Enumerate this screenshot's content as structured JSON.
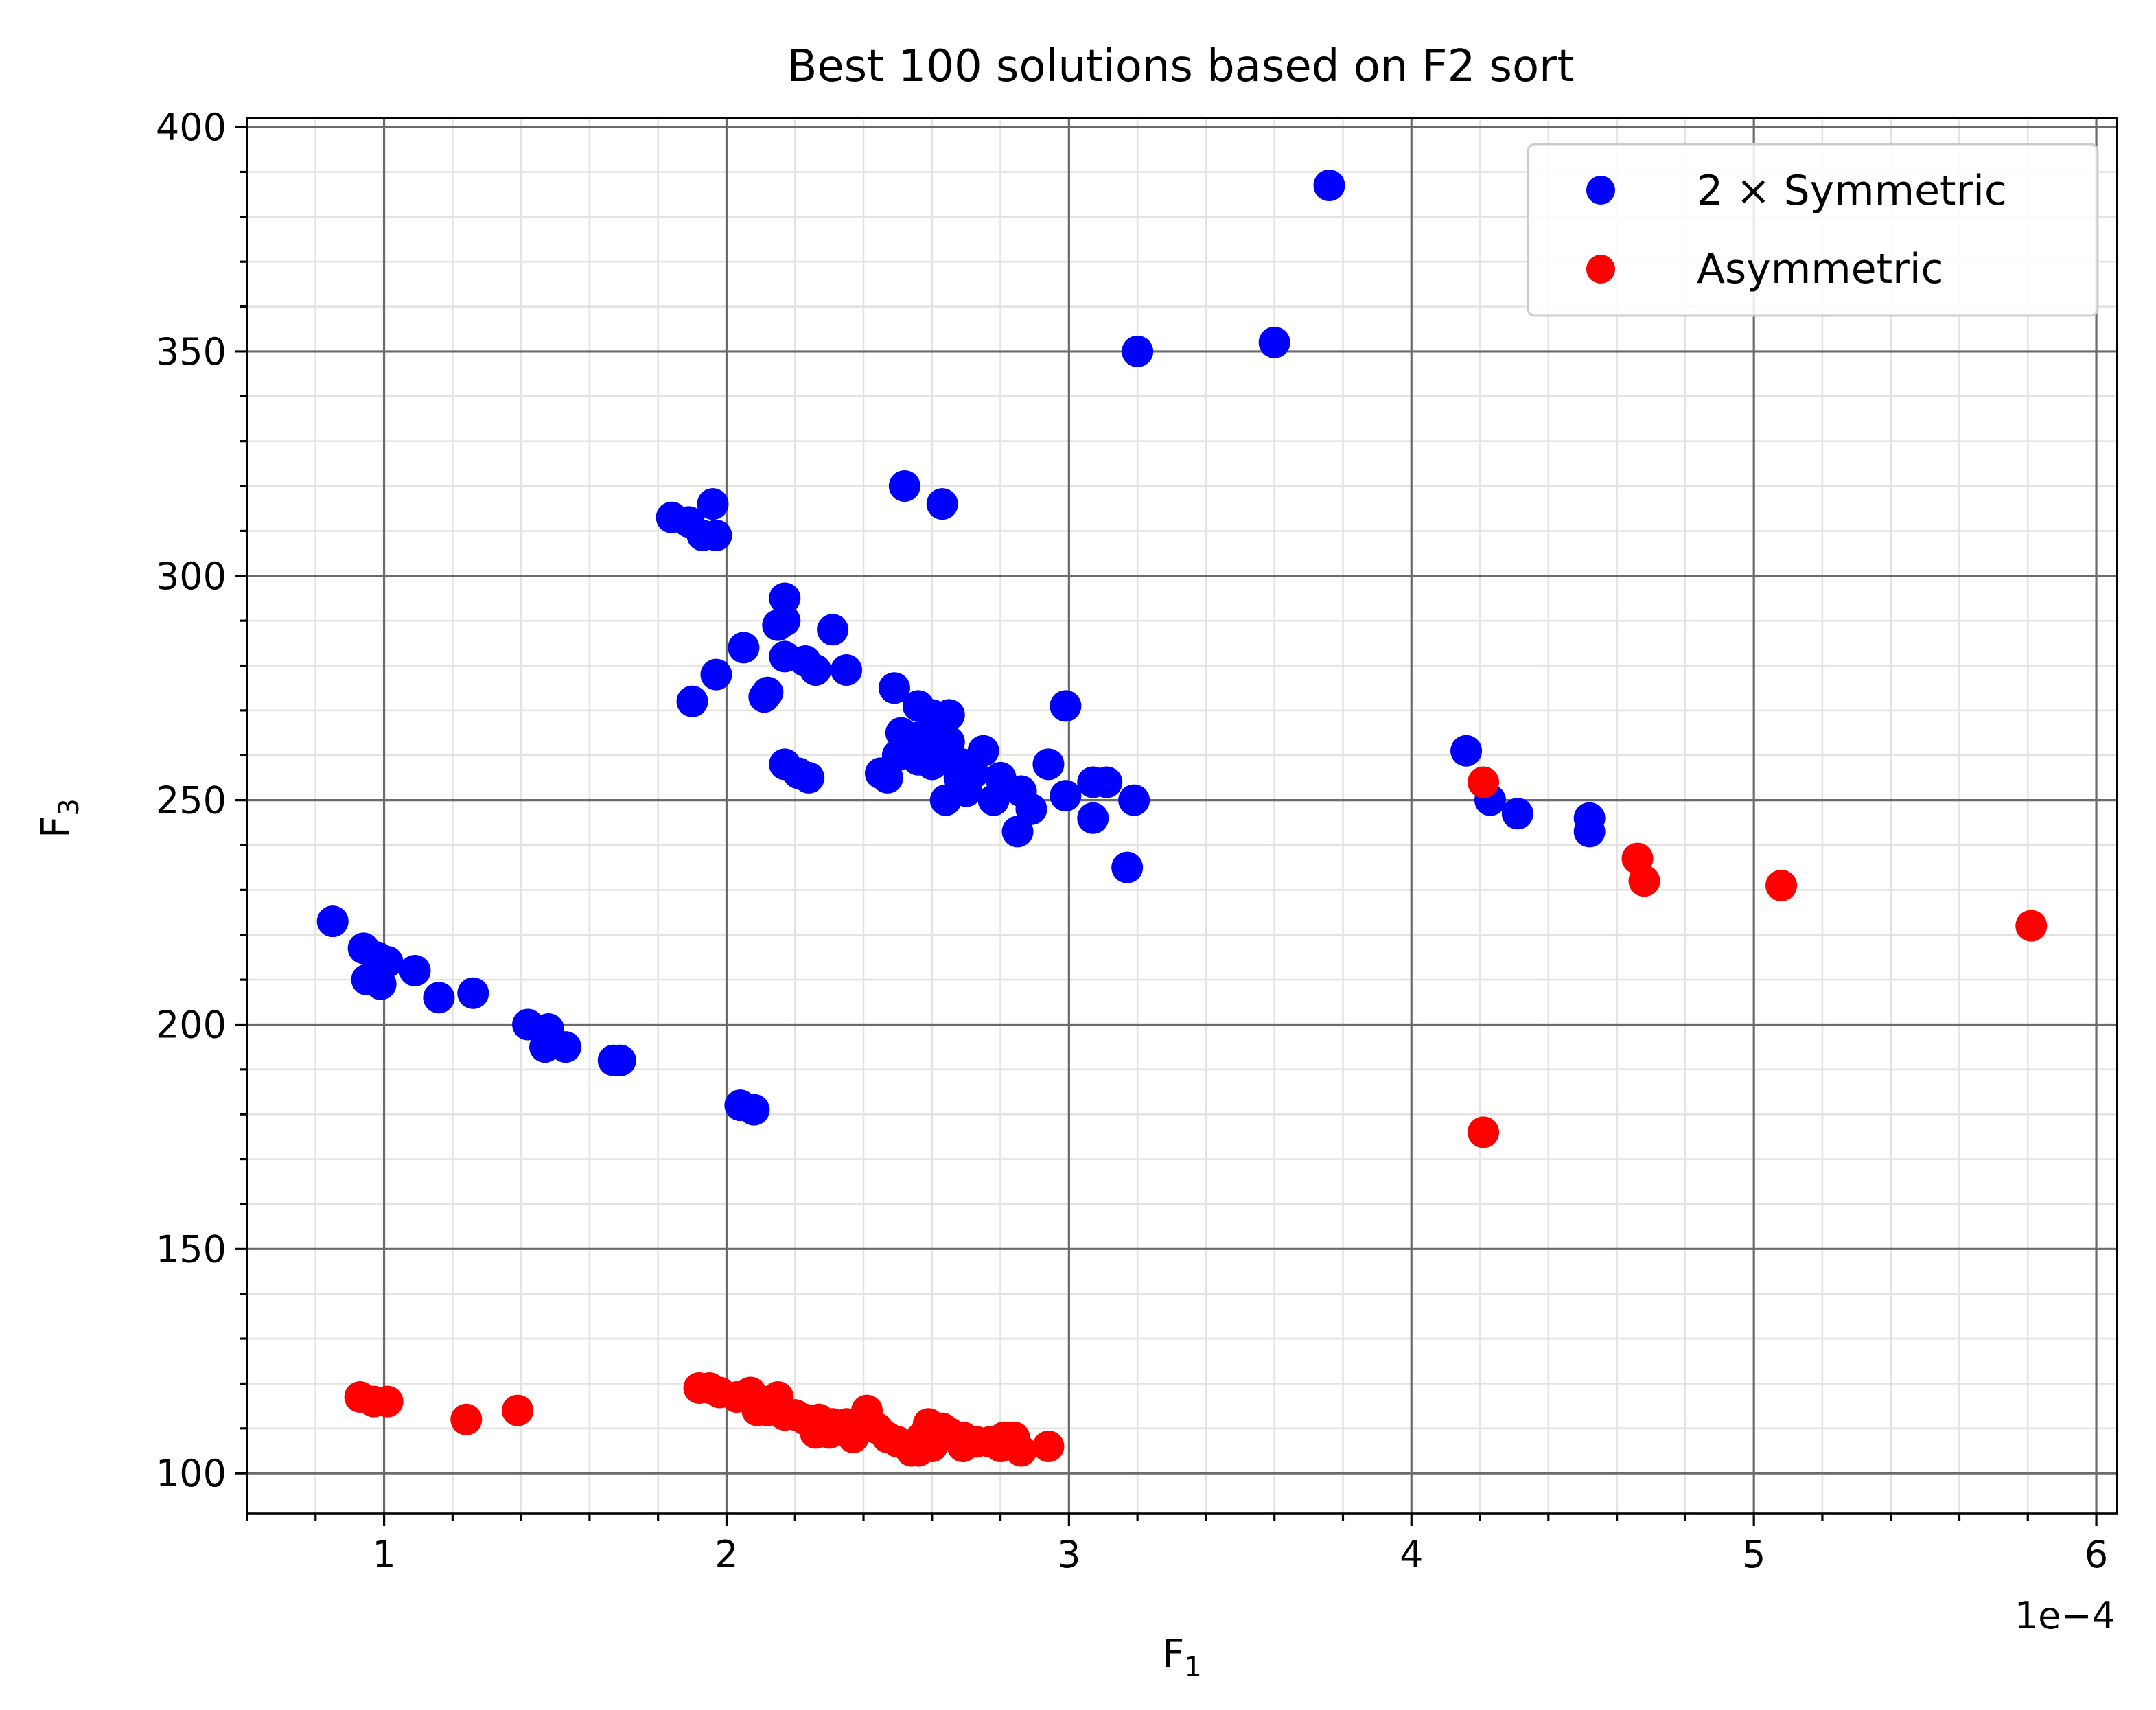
{
  "chart_data": {
    "type": "scatter",
    "title": "Best 100 solutions based on F2 sort",
    "xlabel": "F",
    "xlabel_sub": "1",
    "ylabel": "F",
    "ylabel_sub": "3",
    "x_offset_text": "1e−4",
    "xlim": [
      0.6,
      6.06
    ],
    "ylim": [
      91,
      402
    ],
    "x_ticks": [
      1,
      2,
      3,
      4,
      5,
      6
    ],
    "x_tick_labels": [
      "1",
      "2",
      "3",
      "4",
      "5",
      "6"
    ],
    "y_ticks": [
      100,
      150,
      200,
      250,
      300,
      350,
      400
    ],
    "y_tick_labels": [
      "100",
      "150",
      "200",
      "250",
      "300",
      "350",
      "400"
    ],
    "grid": true,
    "legend_position": "top-right",
    "series": [
      {
        "name": "2 × Symmetric",
        "color": "#0000ff",
        "points": [
          [
            0.85,
            223
          ],
          [
            0.94,
            217
          ],
          [
            0.98,
            215
          ],
          [
            1.01,
            214
          ],
          [
            0.95,
            210
          ],
          [
            0.99,
            209
          ],
          [
            1.09,
            212
          ],
          [
            1.16,
            206
          ],
          [
            1.26,
            207
          ],
          [
            1.42,
            200
          ],
          [
            1.48,
            199
          ],
          [
            1.47,
            195
          ],
          [
            1.53,
            195
          ],
          [
            1.67,
            192
          ],
          [
            1.69,
            192
          ],
          [
            2.04,
            182
          ],
          [
            2.08,
            181
          ],
          [
            1.84,
            313
          ],
          [
            1.89,
            312
          ],
          [
            1.96,
            316
          ],
          [
            1.93,
            309
          ],
          [
            1.97,
            309
          ],
          [
            2.52,
            320
          ],
          [
            2.63,
            316
          ],
          [
            2.17,
            295
          ],
          [
            2.17,
            290
          ],
          [
            2.15,
            289
          ],
          [
            2.31,
            288
          ],
          [
            2.05,
            284
          ],
          [
            2.17,
            282
          ],
          [
            2.23,
            281
          ],
          [
            2.26,
            279
          ],
          [
            2.35,
            279
          ],
          [
            1.97,
            278
          ],
          [
            2.12,
            274
          ],
          [
            2.11,
            273
          ],
          [
            1.9,
            272
          ],
          [
            2.49,
            275
          ],
          [
            2.56,
            271
          ],
          [
            2.99,
            271
          ],
          [
            2.6,
            269
          ],
          [
            2.65,
            269
          ],
          [
            2.51,
            265
          ],
          [
            2.56,
            264
          ],
          [
            2.6,
            264
          ],
          [
            2.65,
            263
          ],
          [
            2.53,
            262
          ],
          [
            2.5,
            260
          ],
          [
            2.56,
            259
          ],
          [
            2.6,
            258
          ],
          [
            2.69,
            258
          ],
          [
            2.75,
            261
          ],
          [
            2.63,
            261
          ],
          [
            2.17,
            258
          ],
          [
            2.21,
            256
          ],
          [
            2.24,
            255
          ],
          [
            2.45,
            256
          ],
          [
            2.47,
            255
          ],
          [
            2.68,
            255
          ],
          [
            2.72,
            256
          ],
          [
            2.8,
            255
          ],
          [
            2.7,
            252
          ],
          [
            2.86,
            252
          ],
          [
            2.94,
            258
          ],
          [
            3.07,
            254
          ],
          [
            3.11,
            254
          ],
          [
            2.78,
            250
          ],
          [
            2.64,
            250
          ],
          [
            2.99,
            251
          ],
          [
            2.89,
            248
          ],
          [
            3.19,
            250
          ],
          [
            3.07,
            246
          ],
          [
            2.85,
            243
          ],
          [
            3.17,
            235
          ],
          [
            3.2,
            350
          ],
          [
            3.6,
            352
          ],
          [
            3.76,
            387
          ],
          [
            4.16,
            261
          ],
          [
            4.23,
            250
          ],
          [
            4.31,
            247
          ],
          [
            4.52,
            246
          ],
          [
            4.52,
            243
          ]
        ]
      },
      {
        "name": "Asymmetric",
        "color": "#ff0000",
        "points": [
          [
            0.93,
            117
          ],
          [
            0.97,
            116
          ],
          [
            1.01,
            116
          ],
          [
            1.24,
            112
          ],
          [
            1.39,
            114
          ],
          [
            1.92,
            119
          ],
          [
            1.95,
            119
          ],
          [
            1.98,
            118
          ],
          [
            2.03,
            117
          ],
          [
            2.07,
            118
          ],
          [
            2.11,
            116
          ],
          [
            2.15,
            117
          ],
          [
            2.09,
            114
          ],
          [
            2.12,
            114
          ],
          [
            2.17,
            113
          ],
          [
            2.2,
            113
          ],
          [
            2.23,
            112
          ],
          [
            2.27,
            112
          ],
          [
            2.31,
            111
          ],
          [
            2.35,
            111
          ],
          [
            2.26,
            109
          ],
          [
            2.3,
            109
          ],
          [
            2.37,
            108
          ],
          [
            2.41,
            114
          ],
          [
            2.44,
            110
          ],
          [
            2.47,
            108
          ],
          [
            2.5,
            107
          ],
          [
            2.53,
            106
          ],
          [
            2.56,
            105
          ],
          [
            2.57,
            108
          ],
          [
            2.59,
            111
          ],
          [
            2.63,
            110
          ],
          [
            2.65,
            109
          ],
          [
            2.69,
            108
          ],
          [
            2.73,
            107
          ],
          [
            2.77,
            107
          ],
          [
            2.69,
            106
          ],
          [
            2.81,
            108
          ],
          [
            2.84,
            108
          ],
          [
            2.8,
            106
          ],
          [
            2.86,
            105
          ],
          [
            2.94,
            106
          ],
          [
            2.6,
            106
          ],
          [
            2.54,
            105
          ],
          [
            4.21,
            254
          ],
          [
            4.21,
            176
          ],
          [
            4.66,
            237
          ],
          [
            4.68,
            232
          ],
          [
            5.08,
            231
          ],
          [
            5.81,
            222
          ]
        ]
      }
    ]
  }
}
